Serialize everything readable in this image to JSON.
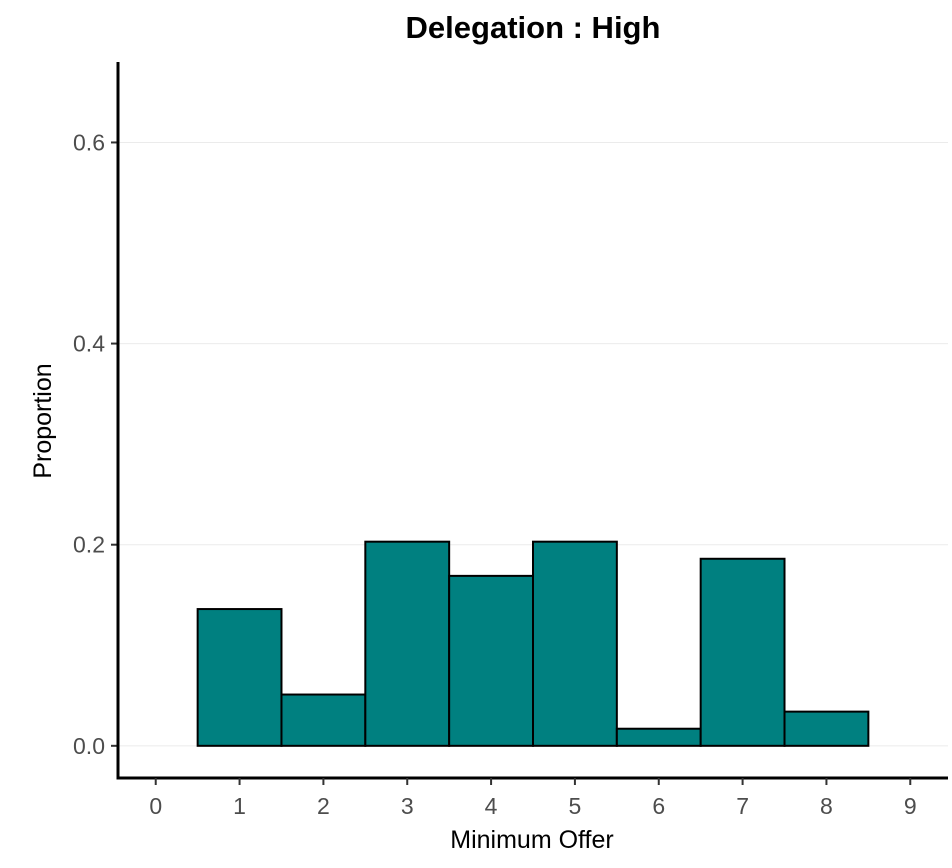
{
  "chart_data": {
    "type": "bar",
    "title": "Delegation : High",
    "xlabel": "Minimum Offer",
    "ylabel": "Proportion",
    "xlim": [
      -0.45,
      9.45
    ],
    "ylim": [
      -0.032,
      0.68
    ],
    "x_ticks": [
      "0",
      "1",
      "2",
      "3",
      "4",
      "5",
      "6",
      "7",
      "8",
      "9"
    ],
    "y_ticks": [
      "0.0",
      "0.2",
      "0.4",
      "0.6"
    ],
    "grid": "horizontal major",
    "bar_color": "#008080",
    "bar_outline": "#000000",
    "bars": [
      {
        "x": 1,
        "value": 0.136
      },
      {
        "x": 2,
        "value": 0.051
      },
      {
        "x": 3,
        "value": 0.203
      },
      {
        "x": 4,
        "value": 0.169
      },
      {
        "x": 5,
        "value": 0.203
      },
      {
        "x": 6,
        "value": 0.017
      },
      {
        "x": 7,
        "value": 0.186
      },
      {
        "x": 8,
        "value": 0.034
      }
    ]
  }
}
